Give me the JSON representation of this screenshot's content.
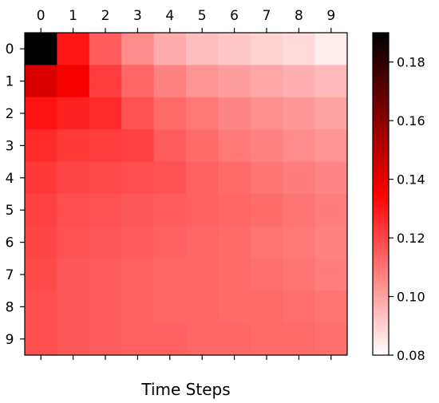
{
  "chart_data": {
    "type": "heatmap",
    "title": "",
    "xlabel": "Time Steps",
    "ylabel": "",
    "x_ticks": [
      "0",
      "1",
      "2",
      "3",
      "4",
      "5",
      "6",
      "7",
      "8",
      "9"
    ],
    "y_ticks": [
      "0",
      "1",
      "2",
      "3",
      "4",
      "5",
      "6",
      "7",
      "8",
      "9"
    ],
    "x_tick_position": "top",
    "colormap": [
      "#ffffff",
      "#ff0000",
      "#000000"
    ],
    "vmin": 0.08,
    "vmax": 0.19,
    "colorbar_ticks": [
      "0.08",
      "0.10",
      "0.12",
      "0.14",
      "0.16",
      "0.18"
    ],
    "values": [
      [
        0.19,
        0.13,
        0.115,
        0.105,
        0.098,
        0.094,
        0.092,
        0.09,
        0.088,
        0.084
      ],
      [
        0.143,
        0.137,
        0.122,
        0.113,
        0.107,
        0.103,
        0.101,
        0.099,
        0.097,
        0.095
      ],
      [
        0.131,
        0.128,
        0.126,
        0.117,
        0.112,
        0.109,
        0.106,
        0.104,
        0.102,
        0.1
      ],
      [
        0.126,
        0.123,
        0.122,
        0.121,
        0.115,
        0.112,
        0.109,
        0.107,
        0.105,
        0.103
      ],
      [
        0.123,
        0.12,
        0.119,
        0.118,
        0.117,
        0.114,
        0.112,
        0.11,
        0.108,
        0.106
      ],
      [
        0.121,
        0.118,
        0.117,
        0.116,
        0.115,
        0.114,
        0.113,
        0.112,
        0.11,
        0.108
      ],
      [
        0.12,
        0.117,
        0.116,
        0.115,
        0.114,
        0.113,
        0.112,
        0.11,
        0.109,
        0.107
      ],
      [
        0.119,
        0.116,
        0.115,
        0.114,
        0.113,
        0.113,
        0.112,
        0.111,
        0.11,
        0.108
      ],
      [
        0.118,
        0.116,
        0.115,
        0.114,
        0.113,
        0.113,
        0.112,
        0.112,
        0.111,
        0.11
      ],
      [
        0.118,
        0.116,
        0.115,
        0.114,
        0.114,
        0.113,
        0.113,
        0.112,
        0.112,
        0.111
      ]
    ]
  }
}
